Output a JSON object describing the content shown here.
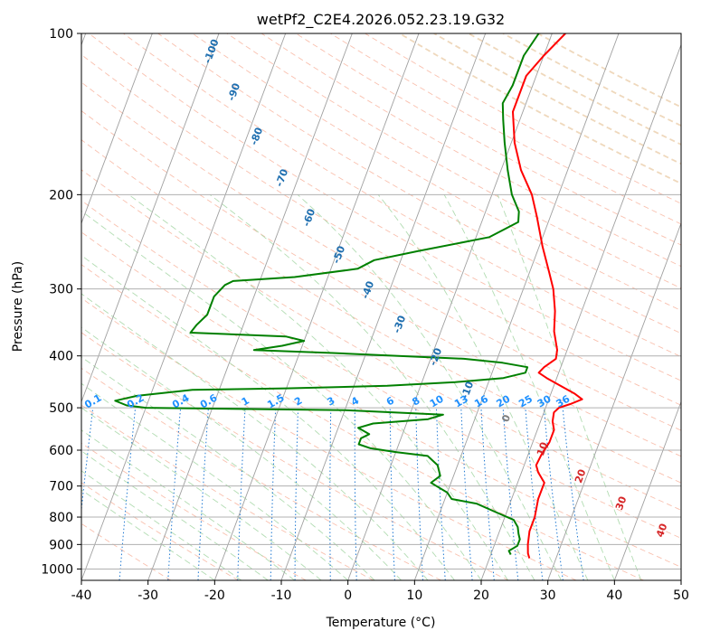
{
  "chart_data": {
    "type": "line",
    "subtype": "skew-T log-P sounding",
    "title": "wetPf2_C2E4.2026.052.23.19.G32",
    "xlabel": "Temperature (°C)",
    "ylabel": "Pressure (hPa)",
    "xlim": [
      -40,
      50
    ],
    "ylim": [
      1050,
      100
    ],
    "y_scale": "log",
    "x_ticks": [
      -40,
      -30,
      -20,
      -10,
      0,
      10,
      20,
      30,
      40,
      50
    ],
    "y_ticks": [
      100,
      200,
      300,
      400,
      500,
      600,
      700,
      800,
      900,
      1000
    ],
    "grid": true,
    "colors": {
      "temperature": "#ff0000",
      "dewpoint": "#008000",
      "isotherm": "#a0a0a0",
      "dry_adiabat": "#f7a58b",
      "moist_adiabat": "#9fd39f",
      "mixing_ratio": "#1e78d2",
      "isotherm_label": "#1f6fb0",
      "mixing_ratio_label": "#1e90ff",
      "warm_label": "#d62728",
      "zero_label": "#808080"
    },
    "series": [
      {
        "key": "temperature",
        "points": [
          [
            2,
            100
          ],
          [
            0,
            110
          ],
          [
            -1.5,
            120
          ],
          [
            -1.5,
            140
          ],
          [
            0.5,
            160
          ],
          [
            3,
            180
          ],
          [
            6,
            200
          ],
          [
            8,
            220
          ],
          [
            10.5,
            250
          ],
          [
            13,
            280
          ],
          [
            14.5,
            300
          ],
          [
            16,
            330
          ],
          [
            17,
            360
          ],
          [
            18.5,
            390
          ],
          [
            18.8,
            405
          ],
          [
            17.5,
            420
          ],
          [
            17,
            430
          ],
          [
            18.5,
            440
          ],
          [
            21,
            455
          ],
          [
            23.5,
            470
          ],
          [
            25,
            482
          ],
          [
            23.5,
            492
          ],
          [
            22,
            500
          ],
          [
            21.5,
            510
          ],
          [
            21.8,
            530
          ],
          [
            22.5,
            550
          ],
          [
            22.5,
            580
          ],
          [
            22,
            610
          ],
          [
            21.8,
            640
          ],
          [
            22.5,
            660
          ],
          [
            24,
            690
          ],
          [
            24,
            740
          ],
          [
            24.5,
            800
          ],
          [
            24.5,
            850
          ],
          [
            25,
            900
          ],
          [
            25.5,
            935
          ],
          [
            26,
            955
          ]
        ]
      },
      {
        "key": "dewpoint",
        "points": [
          [
            -2,
            100
          ],
          [
            -3,
            110
          ],
          [
            -3,
            125
          ],
          [
            -3.5,
            135
          ],
          [
            -2.5,
            145
          ],
          [
            -1,
            160
          ],
          [
            1,
            180
          ],
          [
            3,
            200
          ],
          [
            5,
            215
          ],
          [
            5.5,
            225
          ],
          [
            2,
            240
          ],
          [
            -8,
            255
          ],
          [
            -14,
            265
          ],
          [
            -16,
            275
          ],
          [
            -25,
            285
          ],
          [
            -34,
            290
          ],
          [
            -35,
            295
          ],
          [
            -36,
            310
          ],
          [
            -36,
            335
          ],
          [
            -37,
            350
          ],
          [
            -37.5,
            362
          ],
          [
            -23,
            368
          ],
          [
            -20,
            375
          ],
          [
            -23,
            383
          ],
          [
            -27,
            390
          ],
          [
            -15,
            395
          ],
          [
            -5,
            400
          ],
          [
            5,
            405
          ],
          [
            11,
            412
          ],
          [
            15,
            420
          ],
          [
            15,
            430
          ],
          [
            12,
            440
          ],
          [
            5,
            448
          ],
          [
            -5,
            455
          ],
          [
            -20,
            460
          ],
          [
            -34,
            463
          ],
          [
            -42,
            475
          ],
          [
            -45,
            485
          ],
          [
            -43,
            495
          ],
          [
            -40,
            500
          ],
          [
            -10,
            505
          ],
          [
            5,
            515
          ],
          [
            3,
            525
          ],
          [
            -5,
            535
          ],
          [
            -7,
            545
          ],
          [
            -5,
            560
          ],
          [
            -6,
            570
          ],
          [
            -6,
            585
          ],
          [
            -4,
            595
          ],
          [
            0,
            605
          ],
          [
            5,
            615
          ],
          [
            7,
            640
          ],
          [
            8,
            670
          ],
          [
            7,
            690
          ],
          [
            8,
            700
          ],
          [
            10,
            720
          ],
          [
            11,
            740
          ],
          [
            15,
            755
          ],
          [
            18,
            780
          ],
          [
            21.5,
            810
          ],
          [
            22.5,
            835
          ],
          [
            23,
            860
          ],
          [
            23.5,
            880
          ],
          [
            23.5,
            905
          ],
          [
            22.5,
            925
          ],
          [
            23,
            940
          ]
        ]
      }
    ],
    "isotherm_labels": [
      "-100",
      "-90",
      "-80",
      "-70",
      "-60",
      "-50",
      "-40",
      "-30",
      "-20",
      "-10",
      "0",
      "10",
      "20",
      "30",
      "40"
    ],
    "mixing_ratio_labels": [
      "0.1",
      "0.2",
      "0.4",
      "0.6",
      "1",
      "1.5",
      "2",
      "3",
      "4",
      "6",
      "8",
      "10",
      "13",
      "16",
      "20",
      "25",
      "30",
      "36"
    ],
    "mixing_ratio_values": [
      0.1,
      0.2,
      0.4,
      0.6,
      1,
      1.5,
      2,
      3,
      4,
      6,
      8,
      10,
      13,
      16,
      20,
      25,
      30,
      36
    ]
  }
}
